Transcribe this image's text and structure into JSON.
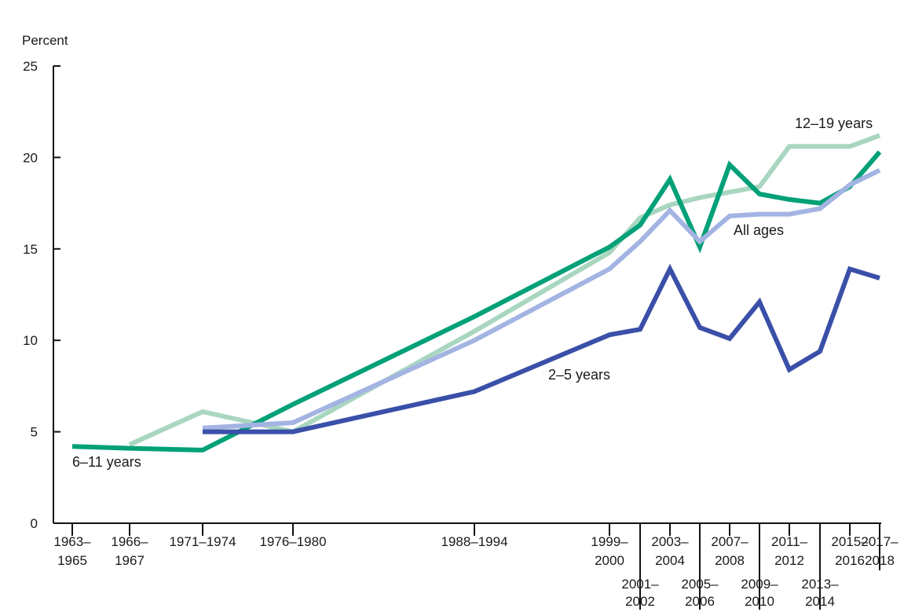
{
  "chart_data": {
    "type": "line",
    "ylabel": "Percent",
    "ylim": [
      0,
      25
    ],
    "yticks": [
      "0",
      "5",
      "10",
      "15",
      "20",
      "25"
    ],
    "grid": false,
    "categories": [
      {
        "top": "1963–",
        "bottom": "1965"
      },
      {
        "top": "1966–",
        "bottom": "1967"
      },
      {
        "top": "1971–1974",
        "bottom": ""
      },
      {
        "top": "1976–1980",
        "bottom": ""
      },
      {
        "top": "1988–1994",
        "bottom": ""
      },
      {
        "top": "1999–",
        "bottom": "2000"
      },
      {
        "top": "2001–",
        "bottom": "2002"
      },
      {
        "top": "2003–",
        "bottom": "2004"
      },
      {
        "top": "2005–",
        "bottom": "2006"
      },
      {
        "top": "2007–",
        "bottom": "2008"
      },
      {
        "top": "2009–",
        "bottom": "2010"
      },
      {
        "top": "2011–",
        "bottom": "2012"
      },
      {
        "top": "2013–",
        "bottom": "2014"
      },
      {
        "top": "2015–",
        "bottom": "2016"
      },
      {
        "top": "2017–",
        "bottom": "2018"
      }
    ],
    "series": [
      {
        "name": "12–19 years",
        "color": "#a9d6c0",
        "values": [
          null,
          4.3,
          6.1,
          5.0,
          10.5,
          14.8,
          16.7,
          17.4,
          17.8,
          18.1,
          18.4,
          20.6,
          20.6,
          20.6,
          21.2
        ]
      },
      {
        "name": "6–11 years",
        "color": "#00a078",
        "values": [
          4.2,
          4.1,
          4.0,
          6.5,
          11.3,
          15.1,
          16.3,
          18.8,
          15.1,
          19.6,
          18.0,
          17.7,
          17.5,
          18.4,
          20.3
        ]
      },
      {
        "name": "All ages",
        "color": "#a3b4e3",
        "values": [
          null,
          null,
          5.2,
          5.5,
          10.0,
          13.9,
          15.4,
          17.1,
          15.4,
          16.8,
          16.9,
          16.9,
          17.2,
          18.5,
          19.3
        ]
      },
      {
        "name": "2–5 years",
        "color": "#3a4fa8",
        "values": [
          null,
          null,
          5.0,
          5.0,
          7.2,
          10.3,
          10.6,
          13.9,
          10.7,
          10.1,
          12.1,
          8.4,
          9.4,
          13.9,
          13.4
        ]
      }
    ]
  }
}
